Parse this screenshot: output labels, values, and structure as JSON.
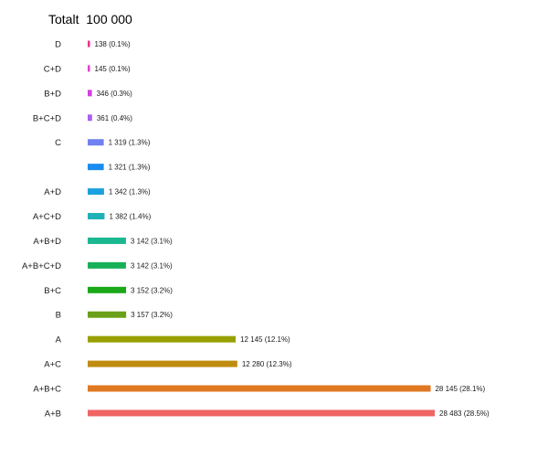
{
  "chart_data": {
    "type": "bar",
    "orientation": "horizontal",
    "title": "Totalt  100 000",
    "xlabel": "",
    "ylabel": "",
    "xlim": [
      0,
      28483
    ],
    "grid": false,
    "legend": "none",
    "categories": [
      "D",
      "C+D",
      "B+D",
      "B+C+D",
      "C",
      "",
      "A+D",
      "A+C+D",
      "A+B+D",
      "A+B+C+D",
      "B+C",
      "B",
      "A",
      "A+C",
      "A+B+C",
      "A+B"
    ],
    "values": [
      138,
      145,
      346,
      361,
      1319,
      1321,
      1342,
      1382,
      3142,
      3142,
      3152,
      3157,
      12145,
      12280,
      28145,
      28483
    ],
    "value_labels": [
      "138 (0.1%)",
      "145 (0.1%)",
      "346 (0.3%)",
      "361 (0.4%)",
      "1 319 (1.3%)",
      "1 321 (1.3%)",
      "1 342 (1.3%)",
      "1 382 (1.4%)",
      "3 142 (3.1%)",
      "3 142 (3.1%)",
      "3 152 (3.2%)",
      "3 157 (3.2%)",
      "12 145 (12.1%)",
      "12 280 (12.3%)",
      "28 145 (28.1%)",
      "28 483 (28.5%)"
    ],
    "colors": [
      "#f0308a",
      "#e040c8",
      "#d040e0",
      "#a860f0",
      "#7080f0",
      "#1a8cf0",
      "#1aa0dd",
      "#20b0b8",
      "#1ab890",
      "#18b058",
      "#1aa818",
      "#6aa01a",
      "#98a000",
      "#c08c10",
      "#e07822",
      "#f06464"
    ]
  }
}
